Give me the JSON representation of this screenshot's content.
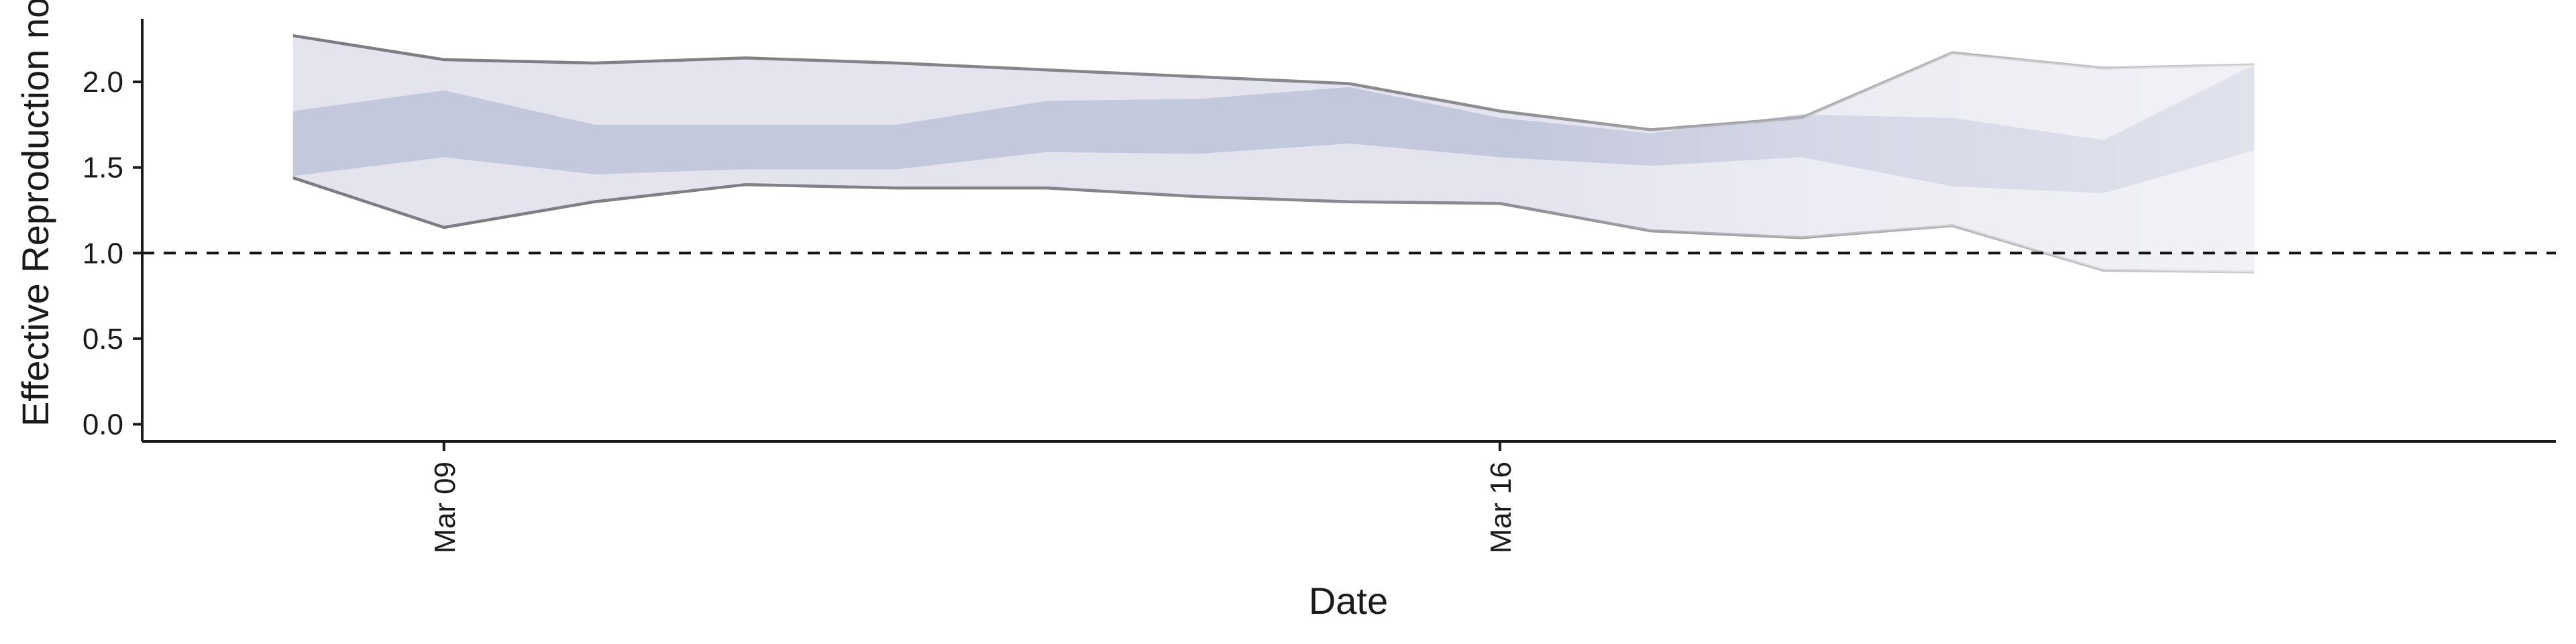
{
  "chart_data": {
    "type": "area",
    "xlabel": "Date",
    "ylabel": "Effective Reproduction no.",
    "x_tick_labels": [
      {
        "date": "2020-03-09",
        "label": "Mar 09"
      },
      {
        "date": "2020-03-16",
        "label": "Mar 16"
      }
    ],
    "y_ticks": [
      0.0,
      0.5,
      1.0,
      1.5,
      2.0
    ],
    "y_tick_labels": [
      "0.0",
      "0.5",
      "1.0",
      "1.5",
      "2.0"
    ],
    "xlim": [
      "2020-03-07",
      "2020-03-23"
    ],
    "ylim": [
      -0.1,
      2.4
    ],
    "reference_line": 1.0,
    "grid": false,
    "series": [
      {
        "dates": [
          "2020-03-08",
          "2020-03-09",
          "2020-03-10",
          "2020-03-11",
          "2020-03-12",
          "2020-03-13",
          "2020-03-14",
          "2020-03-15",
          "2020-03-16",
          "2020-03-17",
          "2020-03-18",
          "2020-03-19",
          "2020-03-20",
          "2020-03-21"
        ],
        "lower_90": [
          1.44,
          1.15,
          1.3,
          1.4,
          1.38,
          1.38,
          1.33,
          1.3,
          1.29,
          1.13,
          1.09,
          1.16,
          0.9,
          0.89
        ],
        "upper_90": [
          2.27,
          2.13,
          2.11,
          2.14,
          2.11,
          2.07,
          2.03,
          1.99,
          1.83,
          1.72,
          1.79,
          2.17,
          2.08,
          2.1
        ],
        "lower_50": [
          1.45,
          1.56,
          1.46,
          1.49,
          1.49,
          1.59,
          1.58,
          1.64,
          1.56,
          1.51,
          1.56,
          1.39,
          1.35,
          1.6
        ],
        "upper_50": [
          1.83,
          1.95,
          1.75,
          1.75,
          1.75,
          1.89,
          1.9,
          1.97,
          1.79,
          1.7,
          1.81,
          1.79,
          1.66,
          2.1
        ],
        "estimate_type": [
          "estimate",
          "estimate",
          "estimate",
          "estimate",
          "estimate",
          "estimate",
          "estimate",
          "estimate",
          "estimate",
          "estimate",
          "estimate",
          "forecast",
          "forecast",
          "forecast"
        ]
      }
    ],
    "colors": {
      "outer_band": "#e4e4ef",
      "inner_band": "#c4c8dc",
      "band_edge": "#7a7a80",
      "reference_line": "#111111",
      "axis": "#1a1a1a"
    }
  }
}
